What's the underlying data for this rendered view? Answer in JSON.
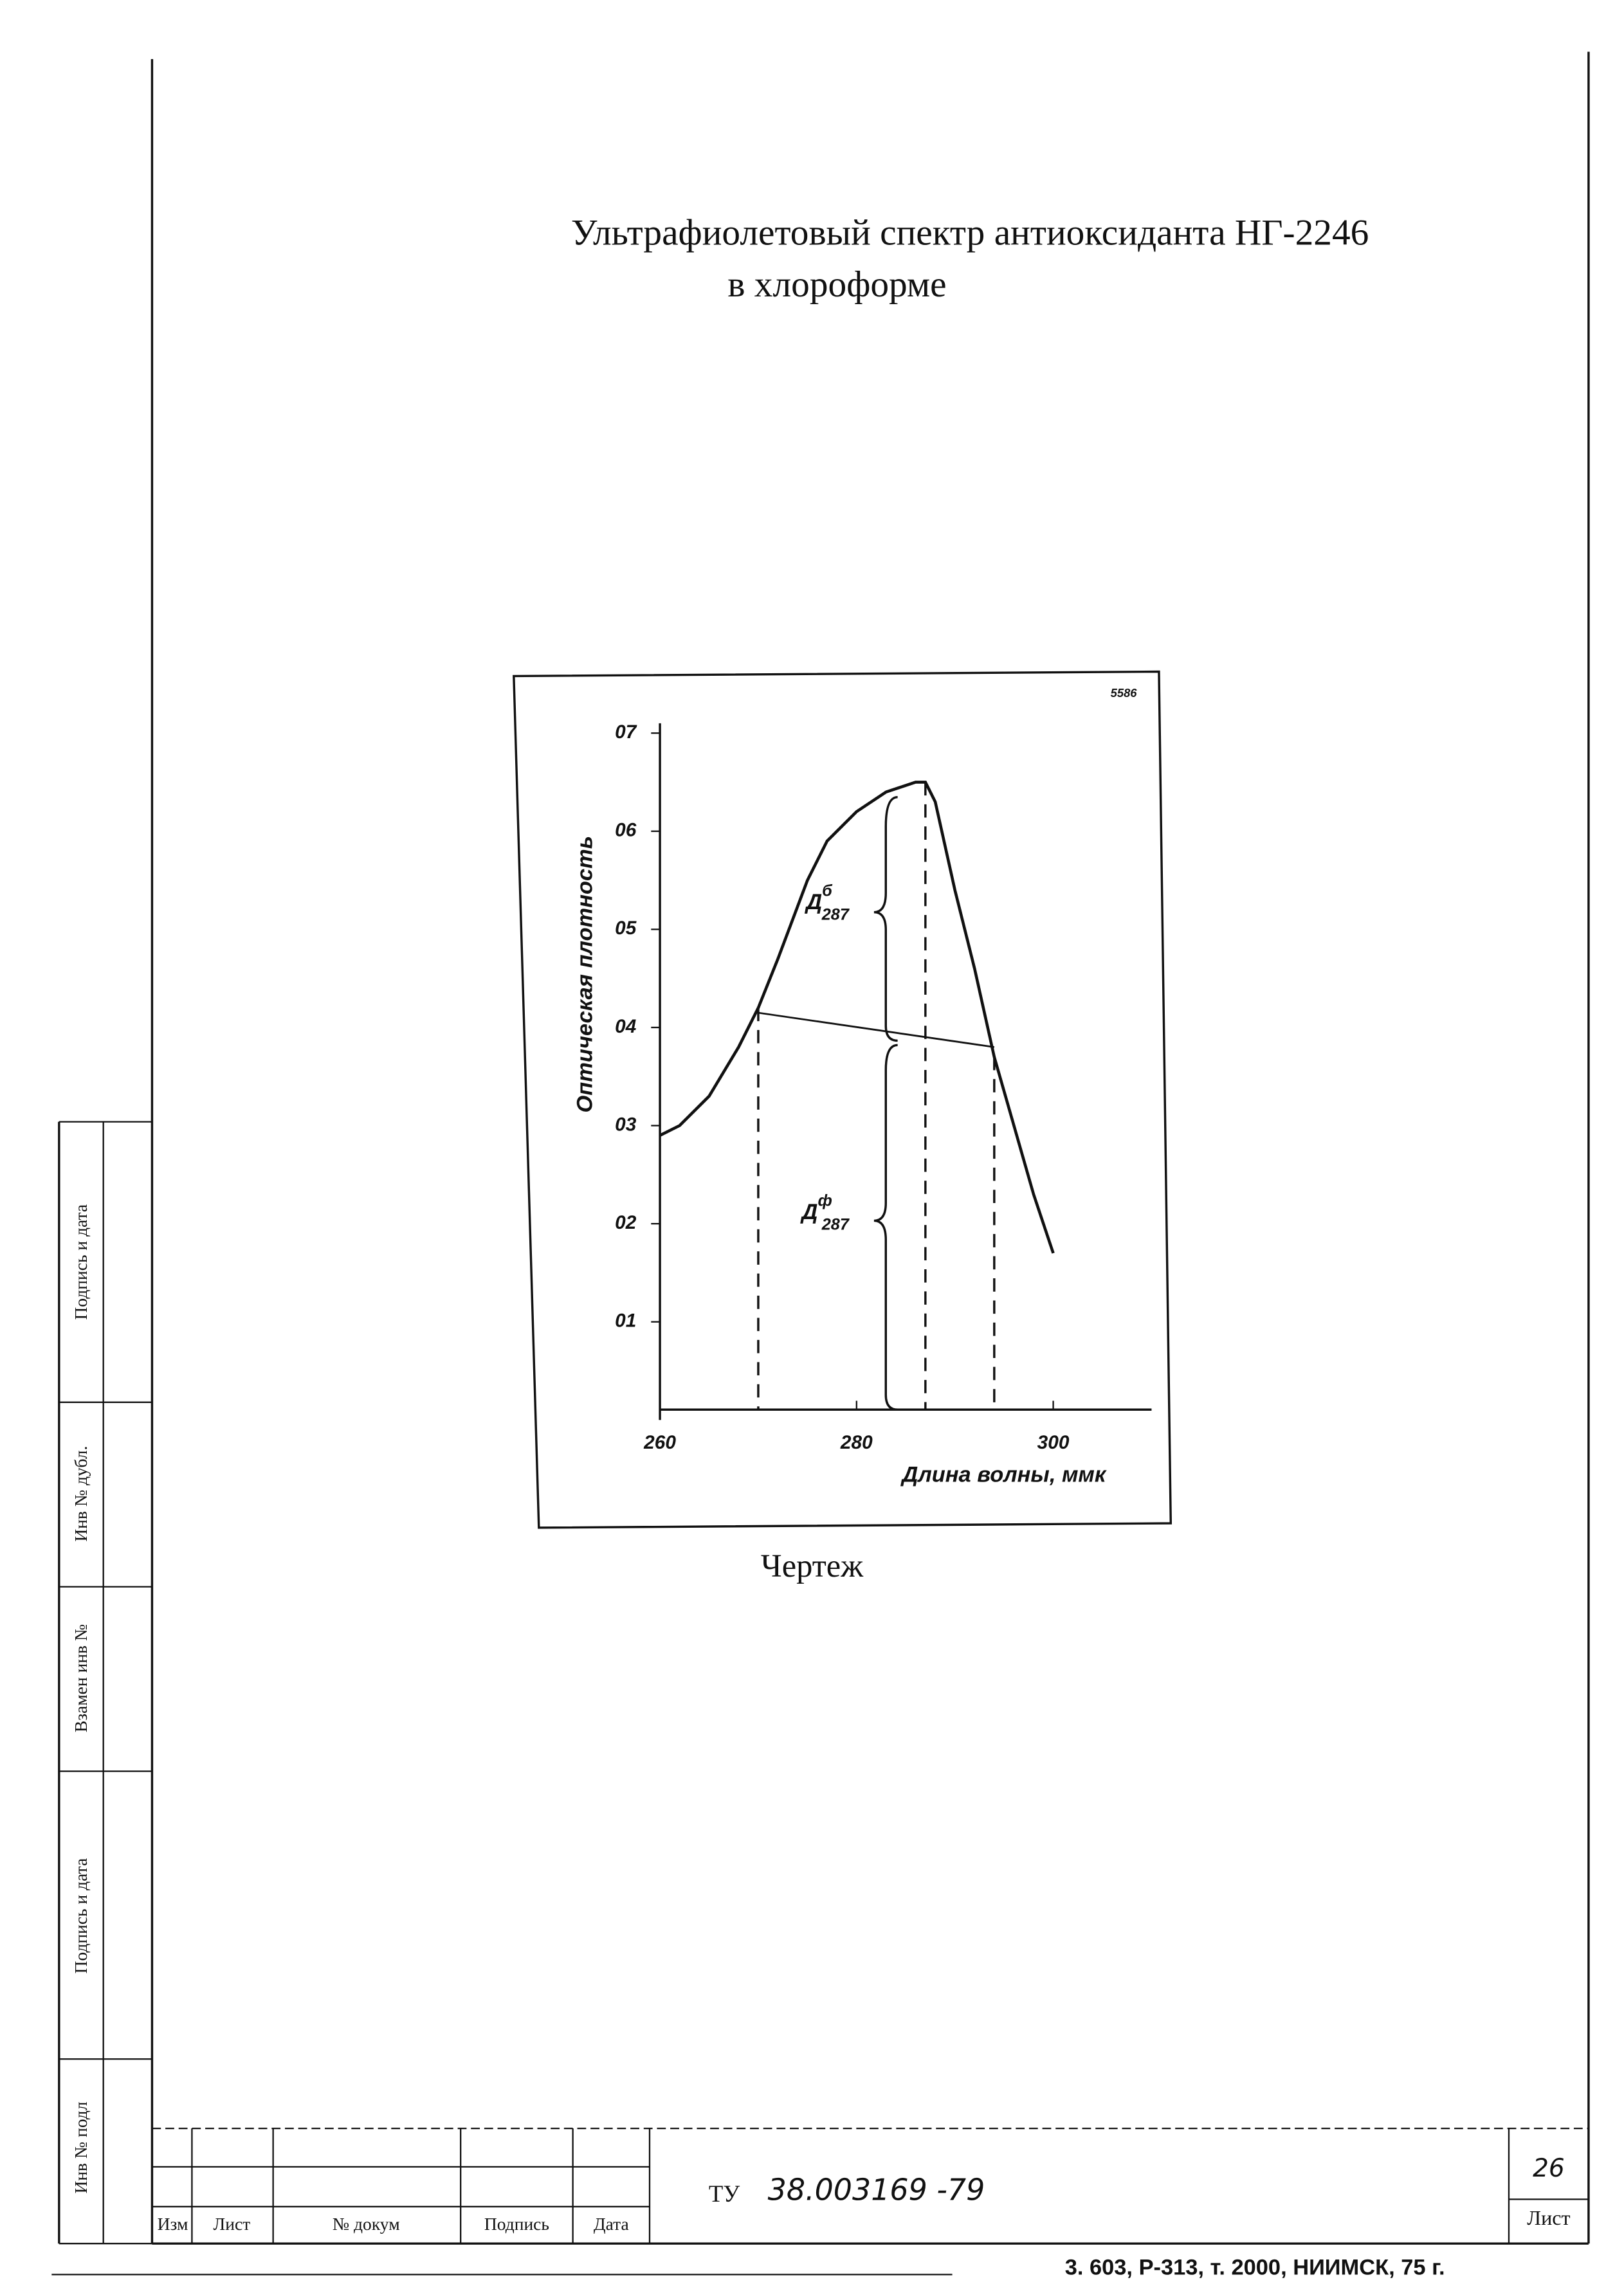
{
  "title": [
    "Ультрафиолетовый спектр антиоксиданта НГ-2246",
    "в хлороформе"
  ],
  "chart_data": {
    "type": "line",
    "stamp": "5586",
    "x_label": "Длина волны, ммк",
    "y_label": "Оптическая плотность",
    "x": [
      260,
      262,
      265,
      268,
      270,
      272,
      275,
      277,
      280,
      283,
      286,
      287,
      288,
      290,
      292,
      294,
      296,
      298,
      300
    ],
    "series": [
      {
        "color": "#111111",
        "values": [
          0.29,
          0.3,
          0.33,
          0.38,
          0.42,
          0.47,
          0.55,
          0.59,
          0.62,
          0.64,
          0.65,
          0.65,
          0.63,
          0.54,
          0.46,
          0.37,
          0.3,
          0.23,
          0.17
        ]
      }
    ],
    "baseline": {
      "x": [
        270,
        294
      ],
      "values": [
        0.415,
        0.38
      ]
    },
    "drop_lines_x": [
      270,
      287,
      294
    ],
    "annotations": [
      {
        "label": "Д",
        "superscript": "б",
        "subscript": "287"
      },
      {
        "label": "Д",
        "superscript": "ф",
        "subscript": "287"
      }
    ],
    "xlim": [
      260,
      310
    ],
    "ylim": [
      0,
      0.71
    ],
    "xticks": [
      260,
      280,
      300
    ],
    "yticks": [
      {
        "value": 0.1,
        "label": "01"
      },
      {
        "value": 0.2,
        "label": "02"
      },
      {
        "value": 0.3,
        "label": "03"
      },
      {
        "value": 0.4,
        "label": "04"
      },
      {
        "value": 0.5,
        "label": "05"
      },
      {
        "value": 0.6,
        "label": "06"
      },
      {
        "value": 0.7,
        "label": "07"
      }
    ]
  },
  "caption": "Чертеж",
  "side_stamp": [
    "Инв № подл",
    "Подпись и дата",
    "Взамен инв №",
    "Инв № дубл.",
    "Подпись и дата"
  ],
  "title_block": {
    "columns": [
      "Изм",
      "Лист",
      "№ докум",
      "Подпись",
      "Дата"
    ],
    "code_prefix": "ТУ",
    "code": "38.003169 -79",
    "sheet_number": "26",
    "sheet_label": "Лист"
  },
  "footer": "3. 603, Р-313, т. 2000, НИИМСК, 75 г."
}
